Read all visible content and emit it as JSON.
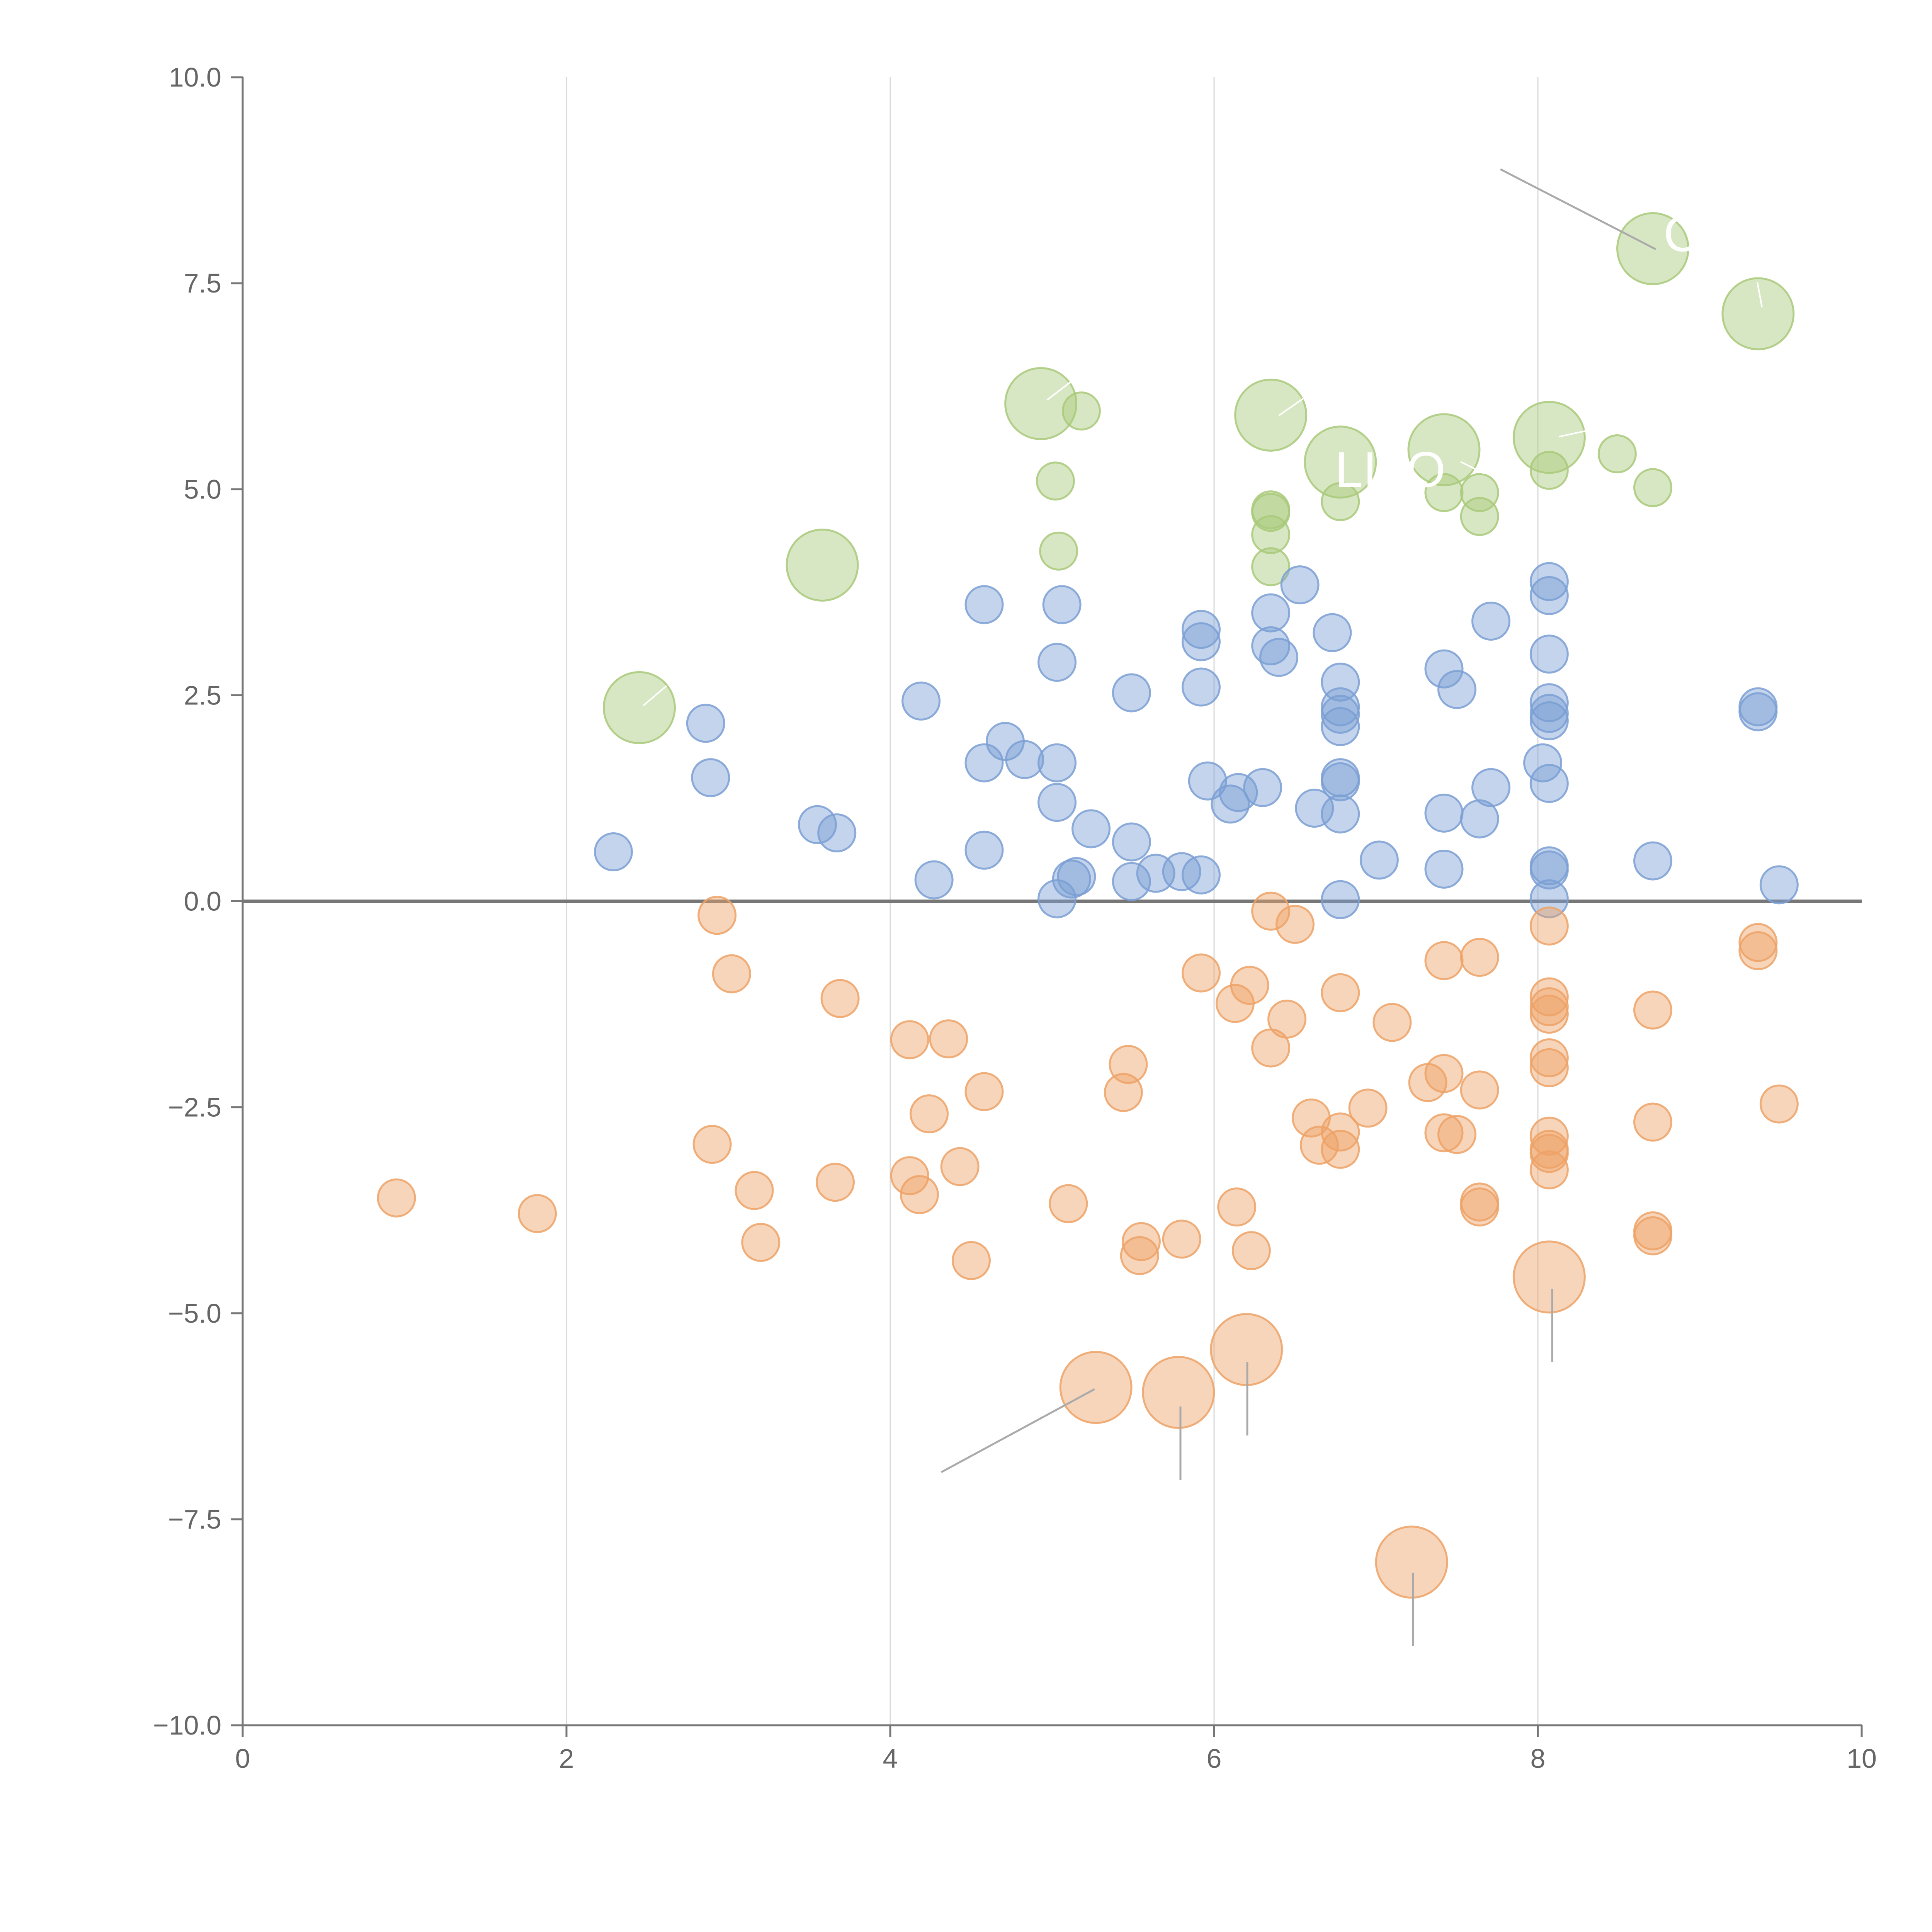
{
  "chart_data": {
    "type": "scatter",
    "title": "",
    "xlabel": "",
    "ylabel": "",
    "xlim": [
      0,
      10
    ],
    "ylim": [
      -10,
      10
    ],
    "grid": "vertical",
    "zero_line": true,
    "x_ticks": [
      "0",
      "2",
      "4",
      "6",
      "8",
      "10"
    ],
    "y_ticks": [
      "10.0",
      "7.5",
      "5.0",
      "2.5",
      "0.0",
      "−2.5",
      "−5.0",
      "−7.5",
      "−10.0"
    ],
    "colors": {
      "green": "#a9c97a",
      "blue": "#7b9fd4",
      "orange": "#eda266"
    },
    "annotations": [
      "LI",
      "O",
      "C"
    ],
    "series": [
      {
        "name": "green",
        "color": "#a9c97a",
        "points": [
          {
            "x": 2.45,
            "y": 2.35,
            "size": 3
          },
          {
            "x": 3.58,
            "y": 4.08,
            "size": 3
          },
          {
            "x": 4.93,
            "y": 6.04,
            "size": 3
          },
          {
            "x": 5.18,
            "y": 5.95,
            "size": 1
          },
          {
            "x": 5.02,
            "y": 5.1,
            "size": 1
          },
          {
            "x": 5.04,
            "y": 4.25,
            "size": 1
          },
          {
            "x": 6.35,
            "y": 5.9,
            "size": 3
          },
          {
            "x": 6.35,
            "y": 4.75,
            "size": 1
          },
          {
            "x": 6.35,
            "y": 4.72,
            "size": 1
          },
          {
            "x": 6.35,
            "y": 4.45,
            "size": 1
          },
          {
            "x": 6.35,
            "y": 4.06,
            "size": 1
          },
          {
            "x": 6.78,
            "y": 5.33,
            "size": 3
          },
          {
            "x": 6.78,
            "y": 4.85,
            "size": 1
          },
          {
            "x": 7.42,
            "y": 5.48,
            "size": 3
          },
          {
            "x": 7.42,
            "y": 4.96,
            "size": 1
          },
          {
            "x": 7.64,
            "y": 4.96,
            "size": 1
          },
          {
            "x": 7.64,
            "y": 4.67,
            "size": 1
          },
          {
            "x": 8.07,
            "y": 5.63,
            "size": 3
          },
          {
            "x": 8.07,
            "y": 5.23,
            "size": 1
          },
          {
            "x": 8.49,
            "y": 5.43,
            "size": 1
          },
          {
            "x": 8.71,
            "y": 5.02,
            "size": 1
          },
          {
            "x": 8.71,
            "y": 7.92,
            "size": 3
          },
          {
            "x": 9.36,
            "y": 7.13,
            "size": 3
          }
        ]
      },
      {
        "name": "blue",
        "color": "#7b9fd4",
        "points": [
          {
            "x": 2.29,
            "y": 0.6,
            "size": 1
          },
          {
            "x": 2.86,
            "y": 2.16,
            "size": 1
          },
          {
            "x": 2.89,
            "y": 1.5,
            "size": 1
          },
          {
            "x": 3.55,
            "y": 0.93,
            "size": 1
          },
          {
            "x": 3.67,
            "y": 0.83,
            "size": 1
          },
          {
            "x": 4.19,
            "y": 2.43,
            "size": 1
          },
          {
            "x": 4.27,
            "y": 0.26,
            "size": 1
          },
          {
            "x": 4.58,
            "y": 3.6,
            "size": 1
          },
          {
            "x": 4.58,
            "y": 1.68,
            "size": 1
          },
          {
            "x": 4.58,
            "y": 0.62,
            "size": 1
          },
          {
            "x": 4.71,
            "y": 1.94,
            "size": 1
          },
          {
            "x": 4.83,
            "y": 1.72,
            "size": 1
          },
          {
            "x": 5.03,
            "y": 2.9,
            "size": 1
          },
          {
            "x": 5.03,
            "y": 1.68,
            "size": 1
          },
          {
            "x": 5.03,
            "y": 1.2,
            "size": 1
          },
          {
            "x": 5.03,
            "y": 0.03,
            "size": 1
          },
          {
            "x": 5.06,
            "y": 3.6,
            "size": 1
          },
          {
            "x": 5.12,
            "y": 0.27,
            "size": 1
          },
          {
            "x": 5.15,
            "y": 0.3,
            "size": 1
          },
          {
            "x": 5.24,
            "y": 0.88,
            "size": 1
          },
          {
            "x": 5.49,
            "y": 2.53,
            "size": 1
          },
          {
            "x": 5.49,
            "y": 0.72,
            "size": 1
          },
          {
            "x": 5.49,
            "y": 0.24,
            "size": 1
          },
          {
            "x": 5.64,
            "y": 0.34,
            "size": 1
          },
          {
            "x": 5.8,
            "y": 0.36,
            "size": 1
          },
          {
            "x": 5.92,
            "y": 3.3,
            "size": 1
          },
          {
            "x": 5.92,
            "y": 3.15,
            "size": 1
          },
          {
            "x": 5.92,
            "y": 2.6,
            "size": 1
          },
          {
            "x": 5.92,
            "y": 0.32,
            "size": 1
          },
          {
            "x": 5.96,
            "y": 1.46,
            "size": 1
          },
          {
            "x": 6.1,
            "y": 1.18,
            "size": 1
          },
          {
            "x": 6.15,
            "y": 1.32,
            "size": 1
          },
          {
            "x": 6.3,
            "y": 1.38,
            "size": 1
          },
          {
            "x": 6.35,
            "y": 3.5,
            "size": 1
          },
          {
            "x": 6.35,
            "y": 3.1,
            "size": 1
          },
          {
            "x": 6.4,
            "y": 2.96,
            "size": 1
          },
          {
            "x": 6.53,
            "y": 3.84,
            "size": 1
          },
          {
            "x": 6.62,
            "y": 1.13,
            "size": 1
          },
          {
            "x": 6.73,
            "y": 3.26,
            "size": 1
          },
          {
            "x": 6.78,
            "y": 2.66,
            "size": 1
          },
          {
            "x": 6.78,
            "y": 2.36,
            "size": 1
          },
          {
            "x": 6.78,
            "y": 2.27,
            "size": 1
          },
          {
            "x": 6.78,
            "y": 2.12,
            "size": 1
          },
          {
            "x": 6.78,
            "y": 1.5,
            "size": 1
          },
          {
            "x": 6.78,
            "y": 1.45,
            "size": 1
          },
          {
            "x": 6.78,
            "y": 1.06,
            "size": 1
          },
          {
            "x": 6.78,
            "y": 0.02,
            "size": 1
          },
          {
            "x": 7.02,
            "y": 0.5,
            "size": 1
          },
          {
            "x": 7.42,
            "y": 2.82,
            "size": 1
          },
          {
            "x": 7.42,
            "y": 1.07,
            "size": 1
          },
          {
            "x": 7.42,
            "y": 0.39,
            "size": 1
          },
          {
            "x": 7.5,
            "y": 2.57,
            "size": 1
          },
          {
            "x": 7.64,
            "y": 1.0,
            "size": 1
          },
          {
            "x": 7.71,
            "y": 3.4,
            "size": 1
          },
          {
            "x": 7.71,
            "y": 1.38,
            "size": 1
          },
          {
            "x": 8.03,
            "y": 1.68,
            "size": 1
          },
          {
            "x": 8.07,
            "y": 3.88,
            "size": 1
          },
          {
            "x": 8.07,
            "y": 3.71,
            "size": 1
          },
          {
            "x": 8.07,
            "y": 3.0,
            "size": 1
          },
          {
            "x": 8.07,
            "y": 2.41,
            "size": 1
          },
          {
            "x": 8.07,
            "y": 2.28,
            "size": 1
          },
          {
            "x": 8.07,
            "y": 2.19,
            "size": 1
          },
          {
            "x": 8.07,
            "y": 1.43,
            "size": 1
          },
          {
            "x": 8.07,
            "y": 0.43,
            "size": 1
          },
          {
            "x": 8.07,
            "y": 0.38,
            "size": 1
          },
          {
            "x": 8.07,
            "y": 0.03,
            "size": 1
          },
          {
            "x": 8.71,
            "y": 0.49,
            "size": 1
          },
          {
            "x": 9.36,
            "y": 2.36,
            "size": 1
          },
          {
            "x": 9.36,
            "y": 2.3,
            "size": 1
          },
          {
            "x": 9.49,
            "y": 0.2,
            "size": 1
          }
        ]
      },
      {
        "name": "orange",
        "color": "#eda266",
        "points": [
          {
            "x": 0.95,
            "y": -3.6,
            "size": 1
          },
          {
            "x": 1.82,
            "y": -3.79,
            "size": 1
          },
          {
            "x": 2.9,
            "y": -2.95,
            "size": 1
          },
          {
            "x": 2.93,
            "y": -0.17,
            "size": 1
          },
          {
            "x": 3.02,
            "y": -0.88,
            "size": 1
          },
          {
            "x": 3.16,
            "y": -3.51,
            "size": 1
          },
          {
            "x": 3.2,
            "y": -4.14,
            "size": 1
          },
          {
            "x": 3.66,
            "y": -3.41,
            "size": 1
          },
          {
            "x": 3.69,
            "y": -1.18,
            "size": 1
          },
          {
            "x": 4.12,
            "y": -1.68,
            "size": 1
          },
          {
            "x": 4.12,
            "y": -3.33,
            "size": 1
          },
          {
            "x": 4.18,
            "y": -3.56,
            "size": 1
          },
          {
            "x": 4.24,
            "y": -2.58,
            "size": 1
          },
          {
            "x": 4.36,
            "y": -1.67,
            "size": 1
          },
          {
            "x": 4.43,
            "y": -3.22,
            "size": 1
          },
          {
            "x": 4.5,
            "y": -4.36,
            "size": 1
          },
          {
            "x": 4.58,
            "y": -2.31,
            "size": 1
          },
          {
            "x": 5.1,
            "y": -3.67,
            "size": 1
          },
          {
            "x": 5.27,
            "y": -5.9,
            "size": 3
          },
          {
            "x": 5.44,
            "y": -2.32,
            "size": 1
          },
          {
            "x": 5.47,
            "y": -1.98,
            "size": 1
          },
          {
            "x": 5.54,
            "y": -4.3,
            "size": 1
          },
          {
            "x": 5.55,
            "y": -4.13,
            "size": 1
          },
          {
            "x": 5.8,
            "y": -4.1,
            "size": 1
          },
          {
            "x": 5.78,
            "y": -5.96,
            "size": 3
          },
          {
            "x": 5.92,
            "y": -0.87,
            "size": 1
          },
          {
            "x": 6.13,
            "y": -1.24,
            "size": 1
          },
          {
            "x": 6.14,
            "y": -3.71,
            "size": 1
          },
          {
            "x": 6.2,
            "y": -5.44,
            "size": 3
          },
          {
            "x": 6.22,
            "y": -1.02,
            "size": 1
          },
          {
            "x": 6.23,
            "y": -4.24,
            "size": 1
          },
          {
            "x": 6.35,
            "y": -0.12,
            "size": 1
          },
          {
            "x": 6.35,
            "y": -1.78,
            "size": 1
          },
          {
            "x": 6.45,
            "y": -1.43,
            "size": 1
          },
          {
            "x": 6.5,
            "y": -0.28,
            "size": 1
          },
          {
            "x": 6.6,
            "y": -2.63,
            "size": 1
          },
          {
            "x": 6.65,
            "y": -2.96,
            "size": 1
          },
          {
            "x": 6.78,
            "y": -1.11,
            "size": 1
          },
          {
            "x": 6.78,
            "y": -2.8,
            "size": 1
          },
          {
            "x": 6.78,
            "y": -3.01,
            "size": 1
          },
          {
            "x": 6.95,
            "y": -2.51,
            "size": 1
          },
          {
            "x": 7.1,
            "y": -1.47,
            "size": 1
          },
          {
            "x": 7.22,
            "y": -8.02,
            "size": 3
          },
          {
            "x": 7.32,
            "y": -2.2,
            "size": 1
          },
          {
            "x": 7.42,
            "y": -2.09,
            "size": 1
          },
          {
            "x": 7.42,
            "y": -0.72,
            "size": 1
          },
          {
            "x": 7.42,
            "y": -2.81,
            "size": 1
          },
          {
            "x": 7.5,
            "y": -2.83,
            "size": 1
          },
          {
            "x": 7.64,
            "y": -0.68,
            "size": 1
          },
          {
            "x": 7.64,
            "y": -2.29,
            "size": 1
          },
          {
            "x": 7.64,
            "y": -3.65,
            "size": 1
          },
          {
            "x": 7.64,
            "y": -3.71,
            "size": 1
          },
          {
            "x": 8.07,
            "y": -0.3,
            "size": 1
          },
          {
            "x": 8.07,
            "y": -1.16,
            "size": 1
          },
          {
            "x": 8.07,
            "y": -1.28,
            "size": 1
          },
          {
            "x": 8.07,
            "y": -1.37,
            "size": 1
          },
          {
            "x": 8.07,
            "y": -1.9,
            "size": 1
          },
          {
            "x": 8.07,
            "y": -2.02,
            "size": 1
          },
          {
            "x": 8.07,
            "y": -2.85,
            "size": 1
          },
          {
            "x": 8.07,
            "y": -3.01,
            "size": 1
          },
          {
            "x": 8.07,
            "y": -3.06,
            "size": 1
          },
          {
            "x": 8.07,
            "y": -3.26,
            "size": 1
          },
          {
            "x": 8.07,
            "y": -4.56,
            "size": 3
          },
          {
            "x": 8.71,
            "y": -1.32,
            "size": 1
          },
          {
            "x": 8.71,
            "y": -2.68,
            "size": 1
          },
          {
            "x": 8.71,
            "y": -4.0,
            "size": 1
          },
          {
            "x": 8.71,
            "y": -4.06,
            "size": 1
          },
          {
            "x": 9.36,
            "y": -0.5,
            "size": 1
          },
          {
            "x": 9.36,
            "y": -0.6,
            "size": 1
          },
          {
            "x": 9.49,
            "y": -2.46,
            "size": 1
          }
        ]
      }
    ]
  }
}
